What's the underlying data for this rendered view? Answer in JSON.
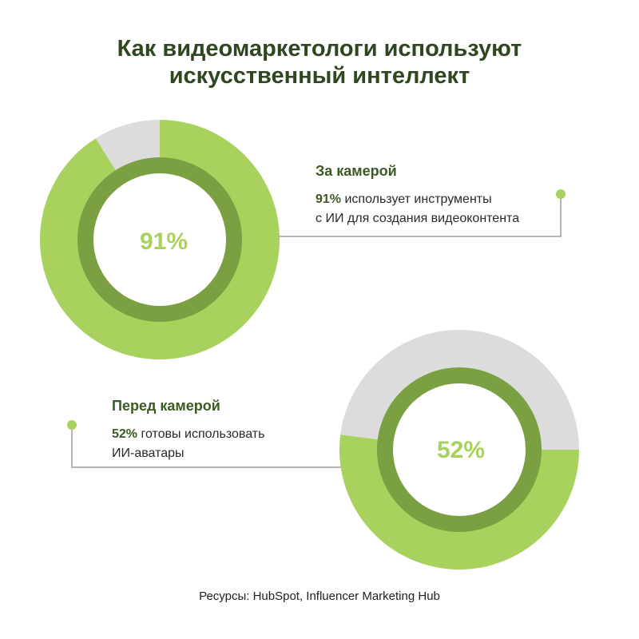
{
  "title": {
    "line1": "Как видеомаркетологи используют",
    "line2": "искусственный интеллект"
  },
  "colors": {
    "accent_light": "#a8d15e",
    "accent_dark": "#7ba042",
    "remainder": "#dcdcdc",
    "heading": "#2f4620",
    "connector": "#b5b5b5"
  },
  "chart_data": [
    {
      "type": "pie",
      "variant": "donut",
      "center_label": "91%",
      "values": [
        91,
        9
      ],
      "categories": [
        "За камерой",
        ""
      ],
      "callout": {
        "heading": "За камерой",
        "value_text": "91%",
        "text_rest_1": " использует инструменты",
        "text_line_2": "с ИИ для создания видеоконтента"
      }
    },
    {
      "type": "pie",
      "variant": "donut",
      "center_label": "52%",
      "values": [
        52,
        48
      ],
      "categories": [
        "Перед камерой",
        ""
      ],
      "callout": {
        "heading": "Перед камерой",
        "value_text": "52%",
        "text_rest_1": " готовы использовать",
        "text_line_2": "ИИ-аватары"
      }
    }
  ],
  "source": "Ресурсы: HubSpot, Influencer Marketing Hub"
}
